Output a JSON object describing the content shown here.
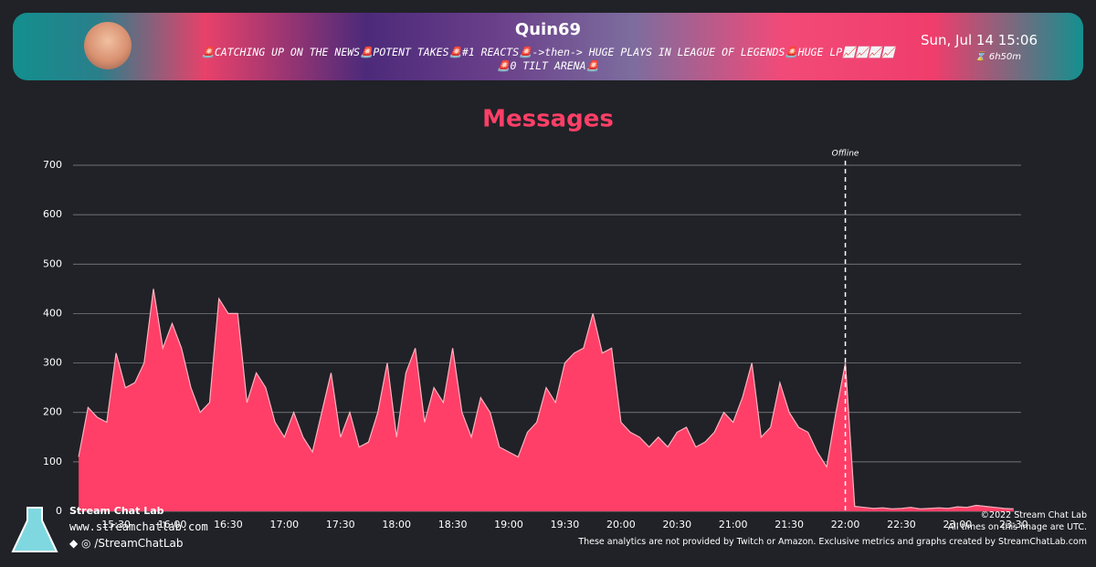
{
  "header": {
    "streamer": "Quin69",
    "stream_title": "🚨CATCHING UP ON THE NEWS🚨POTENT TAKES🚨#1 REACTS🚨->then-> HUGE PLAYS IN LEAGUE OF LEGENDS🚨HUGE LP📈📈📈📈🚨0 TILT ARENA🚨",
    "date": "Sun, Jul 14 15:06",
    "duration": "6h50m"
  },
  "chart_data": {
    "type": "area",
    "title": "Messages",
    "color": "#ff3f67",
    "line_color": "#ffb3c0",
    "x": [
      "15:10",
      "15:15",
      "15:20",
      "15:25",
      "15:30",
      "15:35",
      "15:40",
      "15:45",
      "15:50",
      "15:55",
      "16:00",
      "16:05",
      "16:10",
      "16:15",
      "16:20",
      "16:25",
      "16:30",
      "16:35",
      "16:40",
      "16:45",
      "16:50",
      "16:55",
      "17:00",
      "17:05",
      "17:10",
      "17:15",
      "17:20",
      "17:25",
      "17:30",
      "17:35",
      "17:40",
      "17:45",
      "17:50",
      "17:55",
      "18:00",
      "18:05",
      "18:10",
      "18:15",
      "18:20",
      "18:25",
      "18:30",
      "18:35",
      "18:40",
      "18:45",
      "18:50",
      "18:55",
      "19:00",
      "19:05",
      "19:10",
      "19:15",
      "19:20",
      "19:25",
      "19:30",
      "19:35",
      "19:40",
      "19:45",
      "19:50",
      "19:55",
      "20:00",
      "20:05",
      "20:10",
      "20:15",
      "20:20",
      "20:25",
      "20:30",
      "20:35",
      "20:40",
      "20:45",
      "20:50",
      "20:55",
      "21:00",
      "21:05",
      "21:10",
      "21:15",
      "21:20",
      "21:25",
      "21:30",
      "21:35",
      "21:40",
      "21:45",
      "21:50",
      "21:55",
      "22:00",
      "22:05",
      "22:10",
      "22:15",
      "22:20",
      "22:25",
      "22:30",
      "22:35",
      "22:40",
      "22:45",
      "22:50",
      "22:55",
      "23:00",
      "23:05",
      "23:10",
      "23:15",
      "23:20",
      "23:25",
      "23:30"
    ],
    "values": [
      110,
      210,
      190,
      180,
      320,
      250,
      260,
      300,
      450,
      330,
      380,
      330,
      250,
      200,
      220,
      430,
      400,
      400,
      220,
      280,
      250,
      180,
      150,
      200,
      150,
      120,
      200,
      280,
      150,
      200,
      130,
      140,
      200,
      300,
      150,
      280,
      330,
      180,
      250,
      220,
      330,
      200,
      150,
      230,
      200,
      130,
      120,
      110,
      160,
      180,
      250,
      220,
      300,
      320,
      330,
      400,
      320,
      330,
      180,
      160,
      150,
      130,
      150,
      130,
      160,
      170,
      130,
      140,
      160,
      200,
      180,
      230,
      300,
      150,
      170,
      260,
      200,
      170,
      160,
      120,
      90,
      200,
      300,
      10,
      8,
      6,
      7,
      5,
      6,
      8,
      5,
      6,
      7,
      6,
      9,
      8,
      12,
      10,
      8,
      6,
      5
    ],
    "xlim": [
      "15:07",
      "23:34"
    ],
    "xticks": [
      "15:30",
      "16:00",
      "16:30",
      "17:00",
      "17:30",
      "18:00",
      "18:30",
      "19:00",
      "19:30",
      "20:00",
      "20:30",
      "21:00",
      "21:30",
      "22:00",
      "22:30",
      "23:00",
      "23:30"
    ],
    "ylim": [
      0,
      700
    ],
    "yticks": [
      0,
      100,
      200,
      300,
      400,
      500,
      600,
      700
    ],
    "grid": true,
    "annotation": {
      "x": "22:00",
      "text": "Offline"
    }
  },
  "footer": {
    "brand": "Stream Chat Lab",
    "site": "www.streamchatlab.com",
    "social": "/StreamChatLab",
    "copyright": "©2022 Stream Chat Lab",
    "utc_note": "All times on this image are UTC.",
    "disclaimer": "These analytics are not provided by Twitch or Amazon. Exclusive metrics and graphs created by StreamChatLab.com"
  }
}
